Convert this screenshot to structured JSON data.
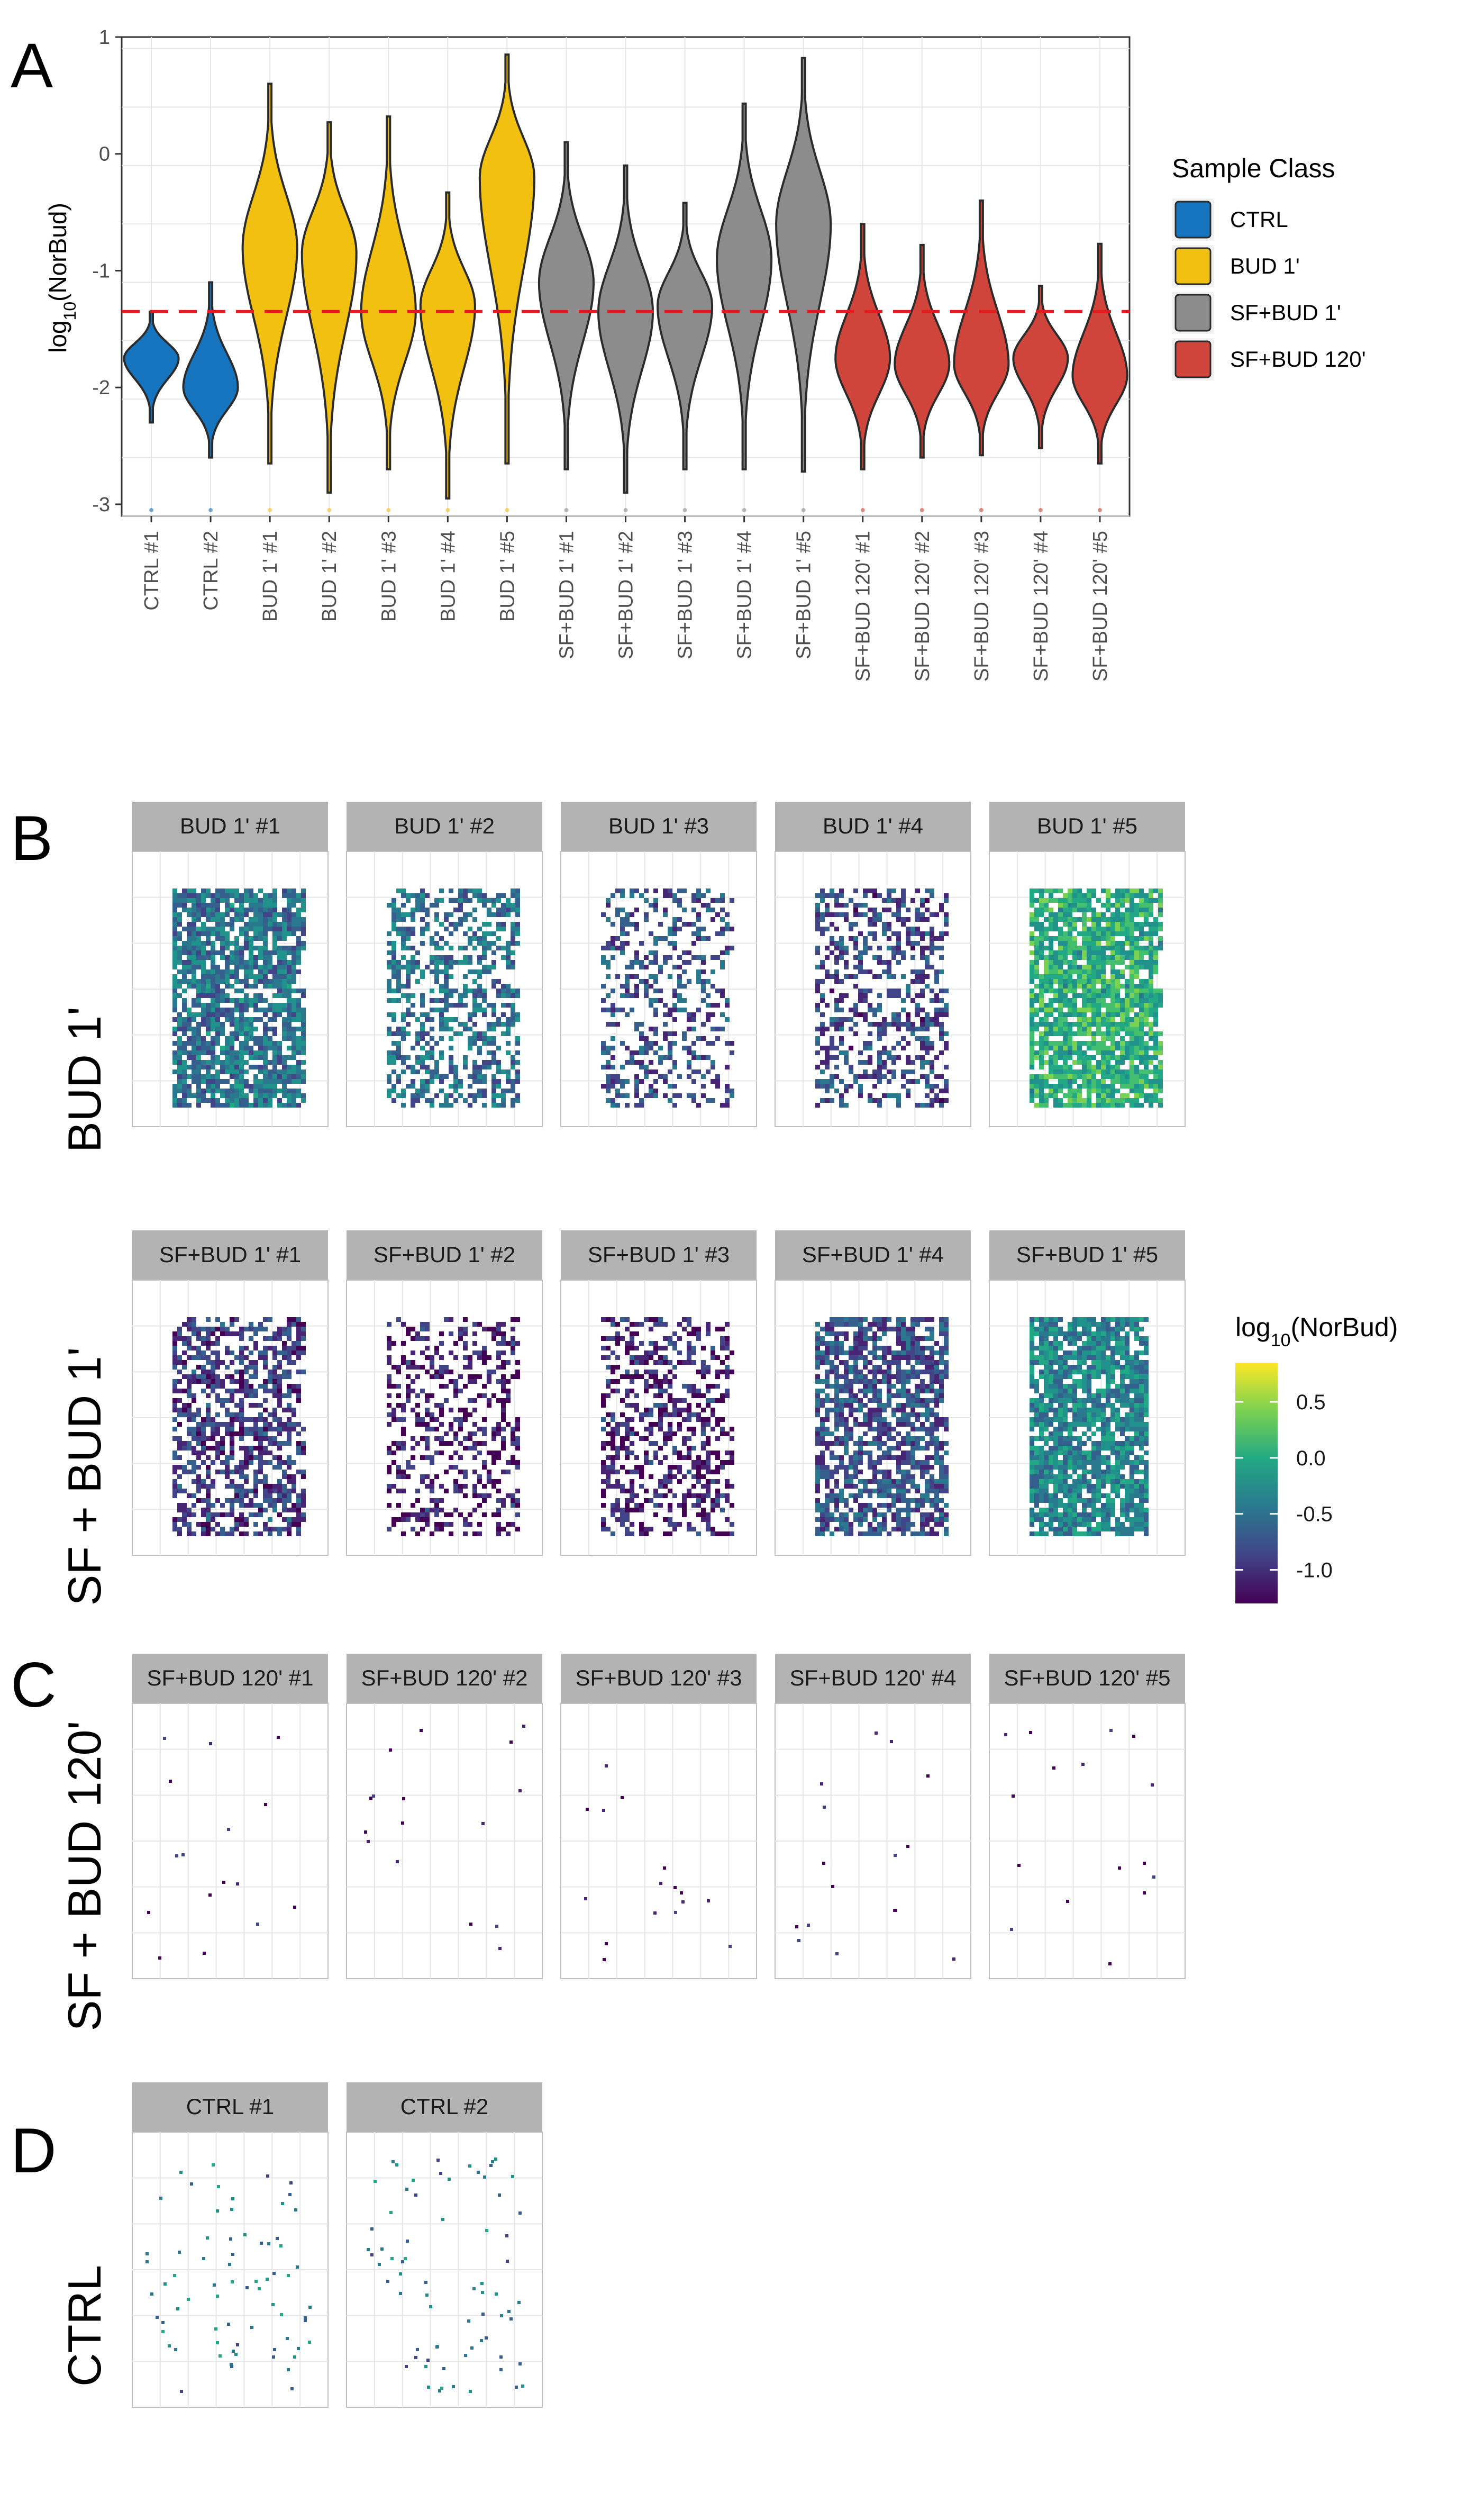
{
  "panel_letters": [
    "A",
    "B",
    "C",
    "D"
  ],
  "row_labels": [
    "BUD 1'",
    "SF + BUD 1'",
    "SF + BUD 120'",
    "CTRL"
  ],
  "colors": {
    "CTRL": "#1673bd",
    "BUD 1'": "#f2c010",
    "SF+BUD 1'": "#8c8c8c",
    "SF+BUD 120'": "#d0453b",
    "threshold_line": "#e41a1c"
  },
  "chart_data": [
    {
      "type": "violin",
      "ylabel_base": "log",
      "ylabel_sub": "10",
      "ylabel_rest": "(NorBud)",
      "ylim": [
        -3.1,
        1.0
      ],
      "yticks": [
        1,
        0,
        -1,
        -2,
        -3
      ],
      "threshold": -1.35,
      "legend": {
        "title": "Sample Class",
        "entries": [
          "CTRL",
          "BUD 1'",
          "SF+BUD 1'",
          "SF+BUD 120'"
        ]
      },
      "categories": [
        "CTRL #1",
        "CTRL #2",
        "BUD 1' #1",
        "BUD 1' #2",
        "BUD 1' #3",
        "BUD 1' #4",
        "BUD 1' #5",
        "SF+BUD 1' #1",
        "SF+BUD 1' #2",
        "SF+BUD 1' #3",
        "SF+BUD 1' #4",
        "SF+BUD 1' #5",
        "SF+BUD 120' #1",
        "SF+BUD 120' #2",
        "SF+BUD 120' #3",
        "SF+BUD 120' #4",
        "SF+BUD 120' #5"
      ],
      "series": [
        {
          "category": "CTRL #1",
          "class": "CTRL",
          "min": -2.3,
          "max": -1.35,
          "mode": -1.75
        },
        {
          "category": "CTRL #2",
          "class": "CTRL",
          "min": -2.6,
          "max": -1.1,
          "mode": -2.0
        },
        {
          "category": "BUD 1' #1",
          "class": "BUD 1'",
          "min": -2.65,
          "max": 0.6,
          "mode": -0.8
        },
        {
          "category": "BUD 1' #2",
          "class": "BUD 1'",
          "min": -2.9,
          "max": 0.27,
          "mode": -0.85
        },
        {
          "category": "BUD 1' #3",
          "class": "BUD 1'",
          "min": -2.7,
          "max": 0.32,
          "mode": -1.35
        },
        {
          "category": "BUD 1' #4",
          "class": "BUD 1'",
          "min": -2.95,
          "max": -0.33,
          "mode": -1.3
        },
        {
          "category": "BUD 1' #5",
          "class": "BUD 1'",
          "min": -2.65,
          "max": 0.85,
          "mode": -0.2
        },
        {
          "category": "SF+BUD 1' #1",
          "class": "SF+BUD 1'",
          "min": -2.7,
          "max": 0.1,
          "mode": -1.1
        },
        {
          "category": "SF+BUD 1' #2",
          "class": "SF+BUD 1'",
          "min": -2.9,
          "max": -0.1,
          "mode": -1.35
        },
        {
          "category": "SF+BUD 1' #3",
          "class": "SF+BUD 1'",
          "min": -2.7,
          "max": -0.42,
          "mode": -1.3
        },
        {
          "category": "SF+BUD 1' #4",
          "class": "SF+BUD 1'",
          "min": -2.7,
          "max": 0.43,
          "mode": -0.9
        },
        {
          "category": "SF+BUD 1' #5",
          "class": "SF+BUD 1'",
          "min": -2.72,
          "max": 0.82,
          "mode": -0.6
        },
        {
          "category": "SF+BUD 120' #1",
          "class": "SF+BUD 120'",
          "min": -2.7,
          "max": -0.6,
          "mode": -1.75
        },
        {
          "category": "SF+BUD 120' #2",
          "class": "SF+BUD 120'",
          "min": -2.6,
          "max": -0.78,
          "mode": -1.8
        },
        {
          "category": "SF+BUD 120' #3",
          "class": "SF+BUD 120'",
          "min": -2.58,
          "max": -0.4,
          "mode": -1.8
        },
        {
          "category": "SF+BUD 120' #4",
          "class": "SF+BUD 120'",
          "min": -2.52,
          "max": -1.13,
          "mode": -1.75
        },
        {
          "category": "SF+BUD 120' #5",
          "class": "SF+BUD 120'",
          "min": -2.65,
          "max": -0.77,
          "mode": -1.9
        }
      ]
    },
    {
      "type": "heatmap",
      "colorbar": {
        "title_base": "log",
        "title_sub": "10",
        "title_rest": "(NorBud)",
        "ticks": [
          "0.5",
          "0.0",
          "-0.5",
          "-1.0"
        ],
        "tick_values": [
          0.5,
          0.0,
          -0.5,
          -1.0
        ],
        "range": [
          -1.3,
          0.85
        ],
        "palette": "viridis"
      },
      "facets": {
        "B_row1": [
          "BUD 1' #1",
          "BUD 1' #2",
          "BUD 1' #3",
          "BUD 1' #4",
          "BUD 1' #5"
        ],
        "B_row2": [
          "SF+BUD 1' #1",
          "SF+BUD 1' #2",
          "SF+BUD 1' #3",
          "SF+BUD 1' #4",
          "SF+BUD 1' #5"
        ],
        "C": [
          "SF+BUD 120' #1",
          "SF+BUD 120' #2",
          "SF+BUD 120' #3",
          "SF+BUD 120' #4",
          "SF+BUD 120' #5"
        ],
        "D": [
          "CTRL #1",
          "CTRL #2"
        ]
      },
      "facet_levels": {
        "B_row1": [
          0.38,
          0.36,
          0.25,
          0.22,
          0.62
        ],
        "B_row2": [
          0.18,
          0.08,
          0.1,
          0.25,
          0.45
        ],
        "C": [
          0.05,
          0.05,
          0.05,
          0.05,
          0.05
        ],
        "D": [
          0.42,
          0.38
        ]
      }
    }
  ]
}
